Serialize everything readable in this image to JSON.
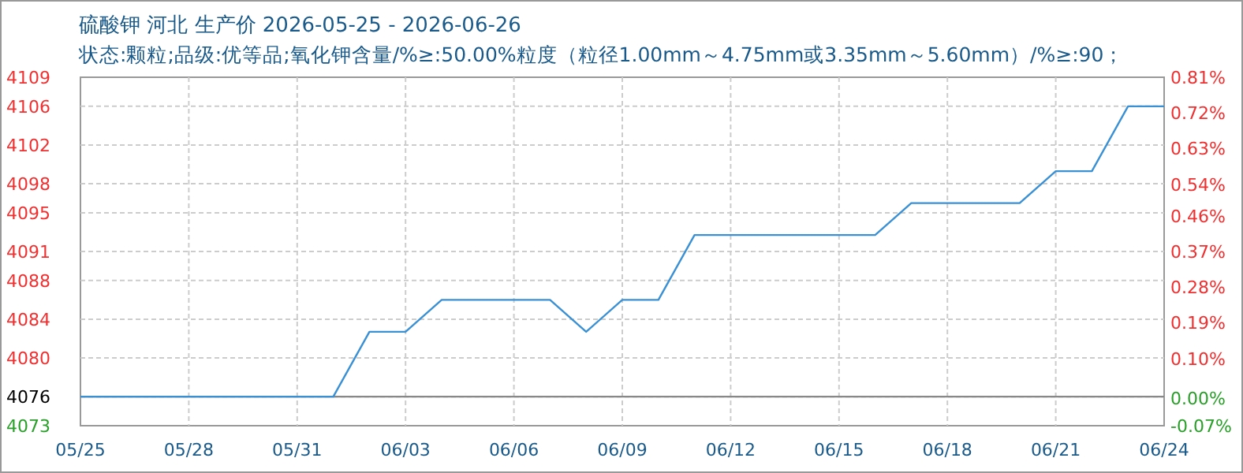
{
  "chart_data": {
    "type": "line",
    "title": "硫酸钾 河北 生产价 2026-05-25 - 2026-06-26",
    "subtitle": "状态:颗粒;品级:优等品;氧化钾含量/%≥:50.00%粒度（粒径1.00mm～4.75mm或3.35mm～5.60mm）/%≥:90；",
    "x": [
      "2026-05-25",
      "2026-06-01",
      "2026-06-02",
      "2026-06-03",
      "2026-06-04",
      "2026-06-07",
      "2026-06-08",
      "2026-06-09",
      "2026-06-10",
      "2026-06-11",
      "2026-06-16",
      "2026-06-17",
      "2026-06-20",
      "2026-06-21",
      "2026-06-22",
      "2026-06-23",
      "2026-06-24"
    ],
    "series": [
      {
        "color": "#3a90d4",
        "values": [
          4076,
          4076,
          4082.7,
          4082.7,
          4086,
          4086,
          4082.7,
          4086,
          4086,
          4092.7,
          4092.7,
          4096,
          4096,
          4099.3,
          4099.3,
          4106,
          4106
        ]
      }
    ],
    "xlim": [
      "2026-05-25",
      "2026-06-24"
    ],
    "xticks": [
      {
        "value": "2026-05-25",
        "label": "05/25"
      },
      {
        "value": "2026-05-28",
        "label": "05/28"
      },
      {
        "value": "2026-05-31",
        "label": "05/31"
      },
      {
        "value": "2026-06-03",
        "label": "06/03"
      },
      {
        "value": "2026-06-06",
        "label": "06/06"
      },
      {
        "value": "2026-06-09",
        "label": "06/09"
      },
      {
        "value": "2026-06-12",
        "label": "06/12"
      },
      {
        "value": "2026-06-15",
        "label": "06/15"
      },
      {
        "value": "2026-06-18",
        "label": "06/18"
      },
      {
        "value": "2026-06-21",
        "label": "06/21"
      },
      {
        "value": "2026-06-24",
        "label": "06/24"
      }
    ],
    "ylim": [
      4073,
      4109
    ],
    "yticks": [
      4073,
      4076,
      4080,
      4084,
      4088,
      4091,
      4095,
      4098,
      4102,
      4106,
      4109
    ],
    "y2lim": [
      -0.07,
      0.81
    ],
    "y2ticks": [
      {
        "value": -0.07,
        "label": "-0.07%"
      },
      {
        "value": 0,
        "label": "0.00%"
      },
      {
        "value": 0.1,
        "label": "0.10%"
      },
      {
        "value": 0.19,
        "label": "0.19%"
      },
      {
        "value": 0.28,
        "label": "0.28%"
      },
      {
        "value": 0.37,
        "label": "0.37%"
      },
      {
        "value": 0.46,
        "label": "0.46%"
      },
      {
        "value": 0.54,
        "label": "0.54%"
      },
      {
        "value": 0.63,
        "label": "0.63%"
      },
      {
        "value": 0.72,
        "label": "0.72%"
      },
      {
        "value": 0.81,
        "label": "0.81%"
      }
    ],
    "ref_lines": [
      {
        "axis": "y",
        "value": 4076,
        "color": "#888888"
      }
    ],
    "grid": true,
    "marker": "none",
    "line_style": "solid"
  }
}
